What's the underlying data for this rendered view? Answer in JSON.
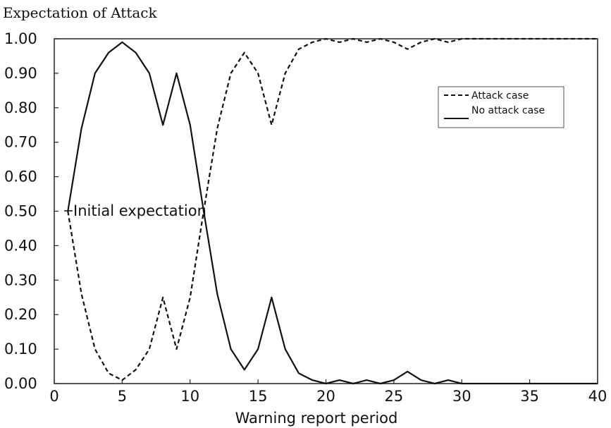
{
  "chart_data": {
    "type": "line",
    "ylabel": "Expectation of Attack",
    "xlabel": "Warning report period",
    "xlim": [
      0,
      40
    ],
    "ylim": [
      0,
      1
    ],
    "xticks": [
      "0",
      "5",
      "10",
      "15",
      "20",
      "25",
      "30",
      "35",
      "40"
    ],
    "yticks": [
      "0.00",
      "0.10",
      "0.20",
      "0.30",
      "0.40",
      "0.50",
      "0.60",
      "0.70",
      "0.80",
      "0.90",
      "1.00"
    ],
    "grid": false,
    "legend_position": "top-right",
    "annotation": "Initial expectation",
    "series": [
      {
        "name": "Attack case",
        "style": "dashed",
        "x": [
          1,
          2,
          3,
          4,
          5,
          6,
          7,
          8,
          9,
          10,
          11,
          12,
          13,
          14,
          15,
          16,
          17,
          18,
          19,
          20,
          21,
          22,
          23,
          24,
          25,
          26,
          27,
          28,
          29,
          30,
          31,
          32,
          33,
          34,
          35,
          36,
          37,
          38,
          39,
          40
        ],
        "y": [
          0.5,
          0.26,
          0.1,
          0.03,
          0.01,
          0.04,
          0.1,
          0.25,
          0.1,
          0.25,
          0.5,
          0.74,
          0.9,
          0.96,
          0.9,
          0.75,
          0.9,
          0.97,
          0.99,
          1.0,
          0.99,
          1.0,
          0.99,
          1.0,
          0.99,
          0.97,
          0.99,
          1.0,
          0.99,
          1.0,
          1.0,
          1.0,
          1.0,
          1.0,
          1.0,
          1.0,
          1.0,
          1.0,
          1.0,
          1.0
        ]
      },
      {
        "name": "No attack case",
        "style": "solid",
        "x": [
          1,
          2,
          3,
          4,
          5,
          6,
          7,
          8,
          9,
          10,
          11,
          12,
          13,
          14,
          15,
          16,
          17,
          18,
          19,
          20,
          21,
          22,
          23,
          24,
          25,
          26,
          27,
          28,
          29,
          30,
          31,
          32,
          33,
          34,
          35,
          36,
          37,
          38,
          39,
          40
        ],
        "y": [
          0.5,
          0.74,
          0.9,
          0.96,
          0.99,
          0.96,
          0.9,
          0.75,
          0.9,
          0.75,
          0.5,
          0.26,
          0.1,
          0.04,
          0.1,
          0.25,
          0.1,
          0.03,
          0.01,
          0.0,
          0.01,
          0.0,
          0.01,
          0.0,
          0.01,
          0.035,
          0.01,
          0.0,
          0.01,
          0.0,
          0.0,
          0.0,
          0.0,
          0.0,
          0.0,
          0.0,
          0.0,
          0.0,
          0.0,
          0.0
        ]
      }
    ]
  }
}
